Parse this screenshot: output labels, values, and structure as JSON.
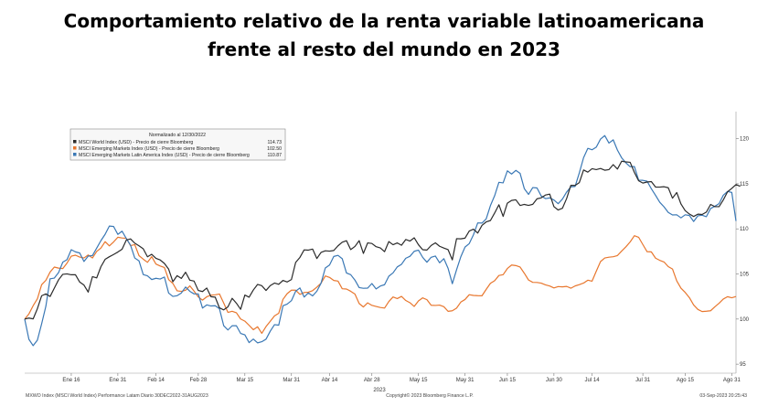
{
  "title": {
    "line1": "Comportamiento relativo de la renta variable latinoamericana",
    "line2": "frente al resto del mundo en 2023"
  },
  "chart_data": {
    "type": "line",
    "title": "Comportamiento relativo de la renta variable latinoamericana frente al resto del mundo en 2023",
    "xlabel": "2023",
    "ylabel": "",
    "ylim": [
      94,
      123
    ],
    "y_ticks": [
      95,
      100,
      105,
      110,
      115,
      120
    ],
    "x_ticks": [
      "Ene 16",
      "Ene 31",
      "Feb 14",
      "Feb 28",
      "Mar 15",
      "Mar 31",
      "Abr 14",
      "Abr 28",
      "May 15",
      "May 31",
      "Jun 15",
      "Jun 30",
      "Jul 14",
      "Jul 31",
      "Ago 15",
      "Ago 31"
    ],
    "x_tick_index": [
      11,
      22,
      31,
      41,
      52,
      63,
      72,
      82,
      93,
      104,
      114,
      125,
      134,
      146,
      156,
      167
    ],
    "x_range": [
      0,
      168
    ],
    "legend": {
      "header": "Normalizado al 12/30/2022",
      "placement": "top-left"
    },
    "series": [
      {
        "name": "MSCI World Index (USD) - Precio de cierre Bloomberg",
        "last": "114.73",
        "color": "#2b2b2b",
        "values": [
          100.0,
          100.11,
          100.02,
          101.15,
          102.58,
          102.79,
          102.5,
          103.43,
          104.35,
          104.96,
          105.01,
          104.91,
          104.91,
          104.1,
          103.77,
          102.99,
          104.7,
          104.56,
          105.8,
          106.62,
          106.91,
          107.16,
          107.43,
          107.74,
          108.76,
          108.89,
          108.41,
          108.12,
          107.79,
          106.9,
          107.18,
          106.73,
          106.55,
          106.17,
          105.53,
          104.14,
          104.81,
          104.51,
          105.19,
          104.31,
          104.21,
          103.17,
          103.05,
          103.44,
          102.48,
          102.43,
          101.24,
          101.02,
          101.35,
          102.3,
          101.76,
          101.08,
          102.66,
          102.42,
          103.22,
          103.84,
          103.7,
          103.17,
          103.71,
          103.99,
          103.85,
          104.28,
          104.11,
          104.38,
          106.28,
          106.83,
          107.67,
          107.64,
          107.76,
          106.71,
          107.39,
          107.57,
          107.53,
          107.6,
          108.12,
          108.52,
          108.69,
          107.7,
          108.05,
          108.69,
          107.28,
          108.44,
          108.38,
          108.02,
          107.89,
          107.47,
          108.59,
          108.24,
          108.44,
          108.18,
          108.82,
          108.65,
          109.01,
          108.24,
          107.69,
          107.65,
          108.16,
          108.45,
          108.07,
          107.87,
          107.69,
          106.56,
          108.91,
          108.89,
          108.97,
          109.76,
          109.96,
          109.53,
          110.38,
          110.77,
          110.92,
          111.76,
          112.67,
          111.38,
          112.85,
          113.15,
          113.22,
          112.59,
          112.71,
          112.6,
          112.72,
          113.33,
          113.44,
          113.75,
          113.85,
          112.46,
          112.09,
          112.28,
          113.36,
          114.83,
          114.81,
          115.13,
          116.53,
          116.29,
          116.67,
          116.57,
          116.69,
          116.5,
          116.57,
          117.12,
          116.63,
          117.5,
          117.42,
          117.38,
          116.26,
          115.33,
          115.08,
          115.19,
          115.24,
          114.63,
          114.63,
          114.67,
          114.56,
          113.4,
          114.03,
          112.76,
          112.02,
          111.64,
          111.37,
          111.63,
          111.59,
          111.86,
          112.71,
          112.47,
          112.46,
          113.21,
          114.1,
          114.49,
          114.91,
          114.72
        ]
      },
      {
        "name": "MSCI Emerging Markets Index (USD) - Precio de cierre Bloomberg",
        "last": "102.50",
        "color": "#e8772e",
        "values": [
          100.0,
          100.57,
          101.48,
          102.24,
          103.8,
          104.29,
          105.21,
          105.76,
          105.65,
          105.6,
          106.21,
          106.97,
          107.08,
          106.87,
          106.77,
          107.11,
          106.77,
          107.49,
          107.87,
          108.58,
          108.11,
          108.55,
          109.07,
          108.99,
          108.95,
          108.14,
          108.25,
          107.03,
          106.64,
          106.29,
          106.92,
          106.1,
          105.88,
          105.72,
          104.38,
          103.95,
          103.13,
          103.07,
          103.2,
          103.68,
          103.1,
          102.45,
          102.1,
          102.47,
          102.65,
          102.69,
          102.78,
          101.78,
          100.74,
          100.86,
          100.7,
          100.01,
          99.77,
          99.31,
          98.82,
          99.15,
          98.42,
          99.17,
          99.76,
          100.35,
          100.64,
          102.18,
          102.82,
          103.2,
          103.2,
          102.74,
          102.94,
          102.98,
          103.15,
          103.54,
          103.98,
          104.78,
          104.62,
          104.28,
          104.21,
          103.36,
          103.33,
          103.08,
          102.77,
          101.72,
          101.34,
          101.8,
          101.52,
          101.4,
          101.28,
          101.22,
          101.94,
          102.45,
          102.27,
          102.51,
          102.06,
          101.81,
          101.4,
          102.01,
          102.35,
          102.15,
          101.53,
          101.51,
          101.55,
          101.37,
          100.86,
          100.92,
          101.21,
          101.88,
          102.17,
          102.7,
          102.62,
          102.59,
          102.58,
          103.29,
          103.96,
          104.26,
          104.83,
          104.92,
          105.6,
          105.99,
          105.93,
          105.77,
          105.08,
          104.33,
          104.07,
          104.06,
          103.98,
          103.79,
          103.66,
          103.45,
          103.6,
          103.57,
          103.62,
          103.42,
          103.67,
          103.82,
          103.99,
          104.31,
          104.2,
          105.31,
          106.37,
          106.77,
          106.86,
          106.91,
          107.04,
          107.54,
          108.01,
          108.55,
          109.24,
          109.07,
          108.26,
          107.47,
          107.45,
          106.75,
          106.51,
          106.33,
          105.81,
          105.55,
          104.23,
          103.42,
          102.95,
          102.37,
          101.56,
          101.07,
          100.83,
          100.87,
          100.92,
          101.36,
          101.75,
          102.22,
          102.48,
          102.36,
          102.5
        ]
      },
      {
        "name": "MSCI Emerging Markets Latin America Index (USD) - Precio de cierre Bloomberg",
        "last": "110.87",
        "color": "#3a78b5",
        "values": [
          100.0,
          97.75,
          97.05,
          97.66,
          99.46,
          101.41,
          104.46,
          104.54,
          105.15,
          106.31,
          106.59,
          107.69,
          107.45,
          107.32,
          106.38,
          106.98,
          107.04,
          107.86,
          108.69,
          109.4,
          110.31,
          110.26,
          109.39,
          109.74,
          108.93,
          108.19,
          106.77,
          106.45,
          104.93,
          104.79,
          104.38,
          104.52,
          104.44,
          104.66,
          102.88,
          102.51,
          102.59,
          102.89,
          103.55,
          103.08,
          102.79,
          102.79,
          101.22,
          101.57,
          101.45,
          101.48,
          101.15,
          99.27,
          98.79,
          99.26,
          99.26,
          98.41,
          98.25,
          97.39,
          97.78,
          97.36,
          97.49,
          97.77,
          98.66,
          99.38,
          99.32,
          101.47,
          101.66,
          102.04,
          103.09,
          103.45,
          102.44,
          102.9,
          102.57,
          103.09,
          103.98,
          105.66,
          105.99,
          106.94,
          107.06,
          106.69,
          105.11,
          104.92,
          104.32,
          103.49,
          103.41,
          103.43,
          103.94,
          103.34,
          103.66,
          103.81,
          104.75,
          105.12,
          105.78,
          106.07,
          106.74,
          106.96,
          107.51,
          107.64,
          106.84,
          106.3,
          106.85,
          106.99,
          106.24,
          106.7,
          105.62,
          103.92,
          105.46,
          106.9,
          107.98,
          108.37,
          109.35,
          110.66,
          110.64,
          111.1,
          112.58,
          113.68,
          115.16,
          115.1,
          116.43,
          116.08,
          116.48,
          116.16,
          114.46,
          113.82,
          114.58,
          114.53,
          113.64,
          113.35,
          113.43,
          113.2,
          112.79,
          113.3,
          114.08,
          114.66,
          114.7,
          116.21,
          117.89,
          118.92,
          118.77,
          119.06,
          119.95,
          120.34,
          119.51,
          119.87,
          118.73,
          117.87,
          117.32,
          116.89,
          116.91,
          115.4,
          115.38,
          115.28,
          114.45,
          113.72,
          112.94,
          112.44,
          111.82,
          111.54,
          111.56,
          111.22,
          111.56,
          111.48,
          110.82,
          111.45,
          111.51,
          111.35,
          112.26,
          112.5,
          112.8,
          113.73,
          114.15,
          114.04,
          110.87
        ]
      }
    ]
  },
  "footer": {
    "left": "MXWO Index (MSCI World Index) Performance Latam  Diario 30DEC2022-31AUG2023",
    "center": "Copyright© 2023 Bloomberg Finance L.P.",
    "right": "03-Sep-2023 20:25:43"
  }
}
